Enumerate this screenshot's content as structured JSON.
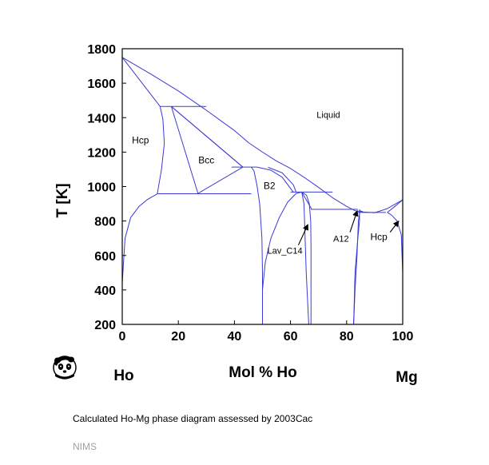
{
  "colors": {
    "boundary": "#3a3ad6",
    "frame": "#000000",
    "source_text": "#a0a0a0"
  },
  "icons": [
    "panda-logo-icon"
  ],
  "chart_data": {
    "type": "phase-diagram",
    "xlabel": "Mol % Ho",
    "ylabel": "T [K]",
    "xlim": [
      0,
      100
    ],
    "ylim": [
      200,
      1800
    ],
    "x_ticks": [
      0,
      20,
      40,
      60,
      80,
      100
    ],
    "y_ticks": [
      200,
      400,
      600,
      800,
      1000,
      1200,
      1400,
      1600,
      1800
    ],
    "end_labels": {
      "left": "Ho",
      "right": "Mg"
    },
    "grid": false,
    "boundaries": [
      {
        "name": "liquidus-ho-rich",
        "points": [
          [
            0,
            1750
          ],
          [
            10,
            1655
          ],
          [
            20,
            1555
          ],
          [
            30,
            1443
          ],
          [
            40,
            1325
          ],
          [
            45,
            1255
          ],
          [
            50,
            1200
          ],
          [
            55,
            1148
          ],
          [
            60,
            1105
          ],
          [
            65,
            1052
          ],
          [
            70,
            995
          ],
          [
            75,
            935
          ],
          [
            80,
            885
          ],
          [
            83,
            860
          ]
        ]
      },
      {
        "name": "liquidus-bcc-left",
        "points": [
          [
            0,
            1750
          ],
          [
            13.5,
            1465
          ]
        ]
      },
      {
        "name": "bcc-liquid-top",
        "points": [
          [
            17.5,
            1465
          ],
          [
            43,
            1113
          ]
        ]
      },
      {
        "name": "hcp-bcc-peritectic",
        "points": [
          [
            13.5,
            1465
          ],
          [
            30,
            1465
          ]
        ]
      },
      {
        "name": "bcc-hcp-left-a",
        "points": [
          [
            17.5,
            1465
          ],
          [
            27,
            960
          ]
        ]
      },
      {
        "name": "bcc-hcp-left-b",
        "points": [
          [
            17.5,
            1465
          ],
          [
            43,
            1113
          ]
        ]
      },
      {
        "name": "bcc-b2-bottom",
        "points": [
          [
            27,
            960
          ],
          [
            43,
            1113
          ]
        ]
      },
      {
        "name": "hcp-solvus",
        "points": [
          [
            0,
            440
          ],
          [
            1,
            700
          ],
          [
            3,
            820
          ],
          [
            6,
            885
          ],
          [
            9,
            925
          ],
          [
            12.5,
            958
          ]
        ]
      },
      {
        "name": "hcp-bcc-right",
        "points": [
          [
            13.5,
            1465
          ],
          [
            14.5,
            1390
          ],
          [
            15,
            1250
          ],
          [
            14,
            1100
          ],
          [
            12.5,
            958
          ]
        ]
      },
      {
        "name": "eutectoid-960",
        "points": [
          [
            12.5,
            958
          ],
          [
            46,
            958
          ]
        ]
      },
      {
        "name": "peritectic-1113",
        "points": [
          [
            39,
            1113
          ],
          [
            48,
            1113
          ]
        ]
      },
      {
        "name": "b2-left",
        "points": [
          [
            46,
            1113
          ],
          [
            47,
            1090
          ],
          [
            48,
            1010
          ],
          [
            49,
            900
          ],
          [
            49.8,
            700
          ],
          [
            50,
            500
          ],
          [
            50,
            200
          ]
        ]
      },
      {
        "name": "b2-right",
        "points": [
          [
            48,
            1113
          ],
          [
            53,
            1095
          ],
          [
            57,
            1055
          ],
          [
            61,
            968
          ]
        ]
      },
      {
        "name": "b2-liquid-right",
        "points": [
          [
            52,
            1112
          ],
          [
            57,
            1080
          ],
          [
            61,
            1010
          ],
          [
            62,
            968
          ]
        ]
      },
      {
        "name": "peritectic-968",
        "points": [
          [
            60,
            968
          ],
          [
            75,
            968
          ]
        ]
      },
      {
        "name": "lav-left-b2",
        "points": [
          [
            50,
            200
          ],
          [
            50,
            400
          ],
          [
            51,
            560
          ],
          [
            53,
            700
          ],
          [
            56,
            820
          ],
          [
            59,
            910
          ],
          [
            62,
            960
          ],
          [
            64,
            968
          ]
        ]
      },
      {
        "name": "lav-dome",
        "points": [
          [
            64,
            968
          ],
          [
            64.8,
            900
          ],
          [
            65.2,
            700
          ],
          [
            65.6,
            500
          ],
          [
            66.2,
            300
          ],
          [
            66.5,
            200
          ]
        ]
      },
      {
        "name": "lav-dome-right",
        "points": [
          [
            64,
            968
          ],
          [
            65.7,
            950
          ],
          [
            66.7,
            900
          ],
          [
            67.2,
            800
          ],
          [
            67.3,
            650
          ],
          [
            67.3,
            200
          ]
        ]
      },
      {
        "name": "lav-liquid-tie",
        "points": [
          [
            64,
            968
          ],
          [
            67.5,
            870
          ]
        ]
      },
      {
        "name": "peritectic-868",
        "points": [
          [
            67.3,
            868
          ],
          [
            84,
            868
          ]
        ]
      },
      {
        "name": "a12-dome",
        "points": [
          [
            82.5,
            200
          ],
          [
            83,
            500
          ],
          [
            84,
            700
          ],
          [
            84.6,
            800
          ],
          [
            84.6,
            868
          ]
        ]
      },
      {
        "name": "a12-right",
        "points": [
          [
            82.5,
            200
          ],
          [
            83,
            400
          ],
          [
            83.7,
            600
          ],
          [
            84.2,
            800
          ],
          [
            84.8,
            860
          ],
          [
            86,
            852
          ]
        ]
      },
      {
        "name": "eutectic-850",
        "points": [
          [
            84,
            850
          ],
          [
            94,
            850
          ]
        ]
      },
      {
        "name": "liquidus-mg-left",
        "points": [
          [
            83,
            860
          ],
          [
            86,
            852
          ],
          [
            90,
            848
          ]
        ]
      },
      {
        "name": "liquidus-mg-right",
        "points": [
          [
            90,
            848
          ],
          [
            94.5,
            872
          ],
          [
            100,
            923
          ]
        ]
      },
      {
        "name": "hcp-mg-solvus",
        "points": [
          [
            94.5,
            850
          ],
          [
            96,
            835
          ],
          [
            98,
            800
          ],
          [
            99.5,
            720
          ],
          [
            100,
            500
          ]
        ]
      },
      {
        "name": "hcp-mg-solidus",
        "points": [
          [
            94.5,
            850
          ],
          [
            97,
            882
          ],
          [
            100,
            923
          ]
        ]
      }
    ],
    "region_labels": [
      {
        "text": "Liquid",
        "x": 73.5,
        "y": 1400
      },
      {
        "text": "Hcp",
        "x": 6.5,
        "y": 1250
      },
      {
        "text": "Bcc",
        "x": 30,
        "y": 1135
      },
      {
        "text": "B2",
        "x": 52.5,
        "y": 985
      },
      {
        "text": "Lav_C14",
        "x": 58,
        "y": 610
      },
      {
        "text": "A12",
        "x": 78,
        "y": 680
      },
      {
        "text": "Hcp",
        "x": 91.5,
        "y": 690
      }
    ],
    "arrows": [
      {
        "label": "Lav_C14",
        "from": [
          62.8,
          660
        ],
        "to": [
          66.2,
          780
        ]
      },
      {
        "label": "A12",
        "from": [
          81.2,
          735
        ],
        "to": [
          83.8,
          860
        ]
      },
      {
        "label": "Hcp",
        "from": [
          95.5,
          735
        ],
        "to": [
          98.6,
          800
        ]
      }
    ]
  },
  "caption": "Calculated Ho-Mg phase diagram assessed by 2003Cac",
  "source": "NIMS"
}
